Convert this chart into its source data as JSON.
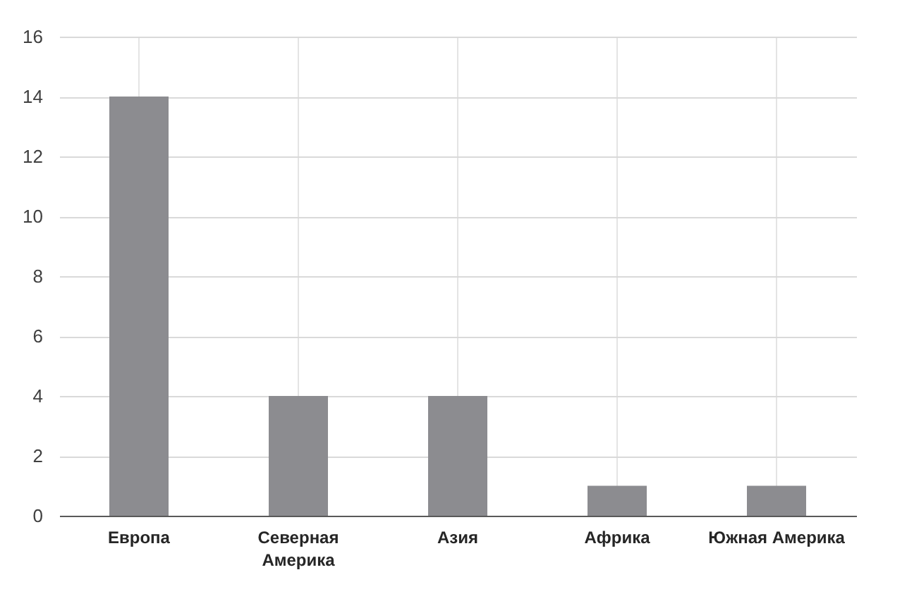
{
  "chart_data": {
    "type": "bar",
    "categories": [
      "Европа",
      "Северная Америка",
      "Азия",
      "Африка",
      "Южная Америка"
    ],
    "values": [
      14,
      4,
      4,
      1,
      1
    ],
    "color": "#8c8c90",
    "ylim": [
      0,
      16
    ],
    "yticks": [
      0,
      2,
      4,
      6,
      8,
      10,
      12,
      14,
      16
    ],
    "grid": true
  }
}
